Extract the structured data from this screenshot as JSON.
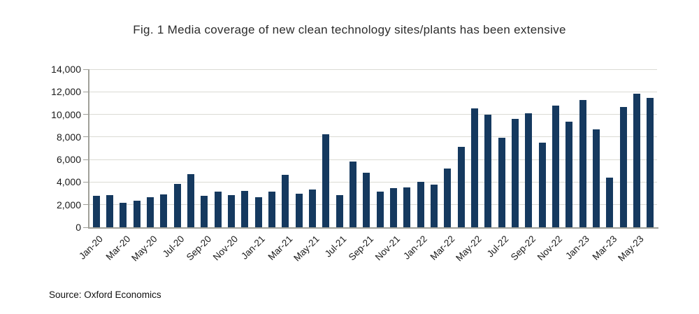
{
  "source_note": "Source: Oxford Economics",
  "colors": {
    "bar": "#15395f",
    "gridline": "#dadad4",
    "axis": "#a0a099",
    "title_text": "#2b2b2b",
    "tick_text": "#1a1a1a"
  },
  "chart_data": {
    "type": "bar",
    "title": "Fig. 1 Media coverage of new clean technology sites/plants has been extensive",
    "xlabel": "",
    "ylabel": "",
    "categories": [
      "Jan-20",
      "Feb-20",
      "Mar-20",
      "Apr-20",
      "May-20",
      "Jun-20",
      "Jul-20",
      "Aug-20",
      "Sep-20",
      "Oct-20",
      "Nov-20",
      "Dec-20",
      "Jan-21",
      "Feb-21",
      "Mar-21",
      "Apr-21",
      "May-21",
      "Jun-21",
      "Jul-21",
      "Aug-21",
      "Sep-21",
      "Oct-21",
      "Nov-21",
      "Dec-21",
      "Jan-22",
      "Feb-22",
      "Mar-22",
      "Apr-22",
      "May-22",
      "Jun-22",
      "Jul-22",
      "Aug-22",
      "Sep-22",
      "Oct-22",
      "Nov-22",
      "Dec-22",
      "Jan-23",
      "Feb-23",
      "Mar-23",
      "Apr-23",
      "May-23",
      "Jun-23"
    ],
    "values": [
      2760,
      2840,
      2140,
      2340,
      2670,
      2900,
      3850,
      4700,
      2760,
      3170,
      2820,
      3230,
      2640,
      3130,
      4670,
      2990,
      3360,
      8230,
      2820,
      5850,
      4850,
      3130,
      3460,
      3530,
      4040,
      3800,
      5210,
      7100,
      10550,
      10000,
      7960,
      9600,
      10080,
      7510,
      10750,
      9370,
      11280,
      8650,
      4390,
      10670,
      11810,
      11460
    ],
    "ylim": [
      0,
      14000
    ],
    "ytick_values": [
      0,
      2000,
      4000,
      6000,
      8000,
      10000,
      12000,
      14000
    ],
    "ytick_labels": [
      "0",
      "2,000",
      "4,000",
      "6,000",
      "8,000",
      "10,000",
      "12,000",
      "14,000"
    ],
    "xtick_every": 2,
    "grid": "horizontal",
    "legend": "none"
  }
}
